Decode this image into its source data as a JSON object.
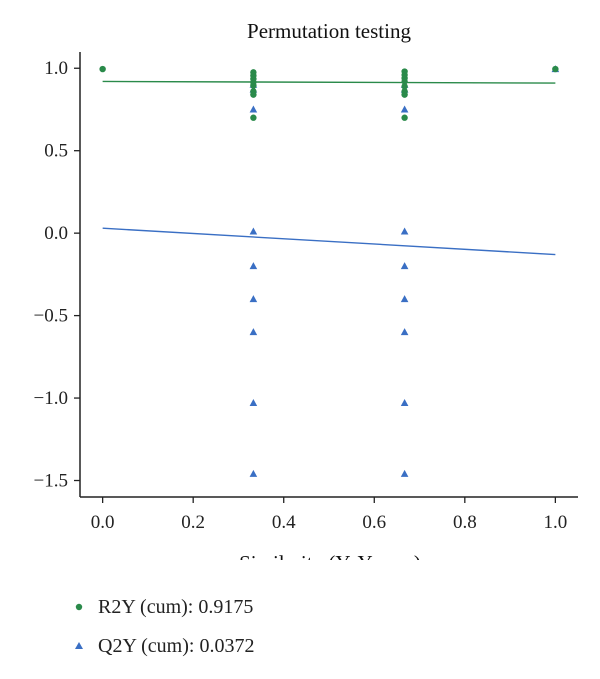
{
  "chart_data": {
    "type": "scatter",
    "title": "Permutation testing",
    "xlabel": "Similarity (Y, Yperm)",
    "ylabel": "",
    "xlim": [
      -0.05,
      1.05
    ],
    "ylim": [
      -1.6,
      1.05
    ],
    "xticks": [
      0.0,
      0.2,
      0.4,
      0.6,
      0.8,
      1.0
    ],
    "yticks": [
      1.0,
      0.5,
      0.0,
      -0.5,
      -1.0,
      -1.5
    ],
    "xtick_labels": [
      "0.0",
      "0.2",
      "0.4",
      "0.6",
      "0.8",
      "1.0"
    ],
    "ytick_labels": [
      "1.0",
      "0.5",
      "0.0",
      "−0.5",
      "−1.0",
      "−1.5"
    ],
    "legend_position": "bottom",
    "series": [
      {
        "name": "R2Y (cum): 0.9175",
        "marker": "circle",
        "color": "#2a8a4a",
        "points": [
          [
            0.0,
            0.995
          ],
          [
            0.333,
            0.975
          ],
          [
            0.333,
            0.955
          ],
          [
            0.333,
            0.935
          ],
          [
            0.333,
            0.915
          ],
          [
            0.333,
            0.895
          ],
          [
            0.333,
            0.86
          ],
          [
            0.333,
            0.84
          ],
          [
            0.333,
            0.7
          ],
          [
            0.667,
            0.98
          ],
          [
            0.667,
            0.96
          ],
          [
            0.667,
            0.94
          ],
          [
            0.667,
            0.92
          ],
          [
            0.667,
            0.89
          ],
          [
            0.667,
            0.86
          ],
          [
            0.667,
            0.84
          ],
          [
            0.667,
            0.7
          ],
          [
            1.0,
            0.995
          ]
        ],
        "trend": [
          [
            0.0,
            0.92
          ],
          [
            1.0,
            0.91
          ]
        ]
      },
      {
        "name": "Q2Y (cum): 0.0372",
        "marker": "triangle",
        "color": "#3a6fc4",
        "points": [
          [
            0.333,
            0.9
          ],
          [
            0.333,
            0.87
          ],
          [
            0.333,
            0.75
          ],
          [
            0.333,
            0.01
          ],
          [
            0.333,
            -0.2
          ],
          [
            0.333,
            -0.4
          ],
          [
            0.333,
            -0.6
          ],
          [
            0.333,
            -1.03
          ],
          [
            0.333,
            -1.46
          ],
          [
            0.667,
            0.9
          ],
          [
            0.667,
            0.87
          ],
          [
            0.667,
            0.75
          ],
          [
            0.667,
            0.01
          ],
          [
            0.667,
            -0.2
          ],
          [
            0.667,
            -0.4
          ],
          [
            0.667,
            -0.6
          ],
          [
            0.667,
            -1.03
          ],
          [
            0.667,
            -1.46
          ],
          [
            1.0,
            0.995
          ]
        ],
        "trend": [
          [
            0.0,
            0.03
          ],
          [
            1.0,
            -0.13
          ]
        ]
      }
    ]
  },
  "legend": [
    {
      "label": "R2Y (cum): 0.9175",
      "marker": "circle",
      "color": "#2a8a4a"
    },
    {
      "label": "Q2Y (cum): 0.0372",
      "marker": "triangle",
      "color": "#3a6fc4"
    }
  ]
}
